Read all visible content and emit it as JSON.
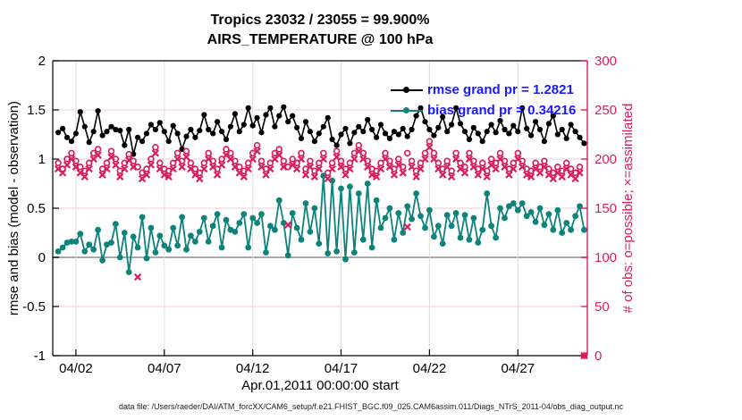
{
  "header": {
    "line1": "Tropics 23032 / 23055 = 99.900%",
    "line2": "AIRS_TEMPERATURE @ 100 hPa"
  },
  "axes": {
    "left_label": "rmse and bias (model - observation)",
    "right_label": "# of obs: o=possible; ×=assimilated",
    "x_label": "Apr.01,2011 00:00:00 start"
  },
  "legend": {
    "rmse": "rmse grand pr = 1.2821",
    "bias": "bias grand pr = 0.34216"
  },
  "footer": {
    "text": "data file: /Users/raeder/DAI/ATM_forcXX/CAM6_setup/f.e21.FHIST_BGC.f09_025.CAM6assim.011/Diags_NTrS_2011-04/obs_diag_output.nc"
  },
  "chart_data": {
    "type": "line",
    "title": "Tropics 23032 / 23055 = 99.900% | AIRS_TEMPERATURE @ 100 hPa",
    "xlabel": "Apr.01,2011 00:00:00 start",
    "ylabel_left": "rmse and bias (model - observation)",
    "ylabel_right": "# of obs: o=possible; ×=assimilated",
    "xlim": [
      -0.31,
      29.93
    ],
    "ylim_left": [
      -1,
      2
    ],
    "ylim_right": [
      0,
      300
    ],
    "grid": true,
    "legend_position": "top-right-inside",
    "x": {
      "start_day": 0.0,
      "step_day": 0.25,
      "count": 120
    },
    "xticks": {
      "positions": [
        1,
        6,
        11,
        16,
        21,
        26
      ],
      "labels": [
        "04/02",
        "04/07",
        "04/12",
        "04/17",
        "04/22",
        "04/27"
      ]
    },
    "yticks_left": {
      "positions": [
        -1,
        -0.5,
        0,
        0.5,
        1,
        1.5,
        2
      ],
      "labels": [
        "-1",
        "-0.5",
        "0",
        "0.5",
        "1",
        "1.5",
        "2"
      ]
    },
    "yticks_right": {
      "positions": [
        0,
        50,
        100,
        150,
        200,
        250,
        300
      ],
      "labels": [
        "0",
        "50",
        "100",
        "150",
        "200",
        "250",
        "300"
      ]
    },
    "style": {
      "rmse_color": "#000000",
      "bias_color": "#0e837b",
      "obs_color": "#d81e5b",
      "legend_text_color": "#1a1aff",
      "grid_h_color": "#f3cdd9",
      "grid_v_color": "#e2dbdb",
      "zero_line_color": "#a9a9a9",
      "axis_color": "#000000",
      "right_axis_color": "#d81e5b"
    },
    "series": [
      {
        "name": "rmse grand pr = 1.2821",
        "axis": "left",
        "marker": "dot",
        "line": true,
        "values": [
          1.27,
          1.31,
          1.22,
          1.18,
          1.26,
          1.48,
          1.33,
          1.17,
          1.28,
          1.49,
          1.24,
          1.28,
          1.33,
          1.3,
          1.29,
          1.14,
          1.3,
          1.05,
          1.22,
          1.18,
          1.26,
          1.35,
          1.3,
          1.37,
          1.28,
          1.18,
          1.34,
          1.26,
          1.1,
          1.23,
          1.3,
          1.22,
          1.29,
          1.45,
          1.3,
          1.26,
          1.38,
          1.28,
          1.2,
          1.33,
          1.46,
          1.28,
          1.35,
          1.52,
          1.34,
          1.42,
          1.27,
          1.45,
          1.52,
          1.33,
          1.44,
          1.53,
          1.38,
          1.44,
          1.32,
          1.21,
          1.38,
          1.28,
          1.18,
          1.26,
          1.33,
          1.42,
          1.2,
          1.14,
          1.25,
          1.31,
          1.16,
          1.27,
          1.33,
          1.28,
          1.4,
          1.3,
          1.22,
          1.35,
          1.26,
          1.21,
          1.28,
          1.25,
          1.31,
          1.23,
          1.3,
          1.44,
          1.52,
          1.38,
          1.3,
          1.24,
          1.32,
          1.43,
          1.28,
          1.35,
          1.52,
          1.36,
          1.28,
          1.2,
          1.32,
          1.26,
          1.18,
          1.28,
          1.35,
          1.27,
          1.39,
          1.3,
          1.26,
          1.34,
          1.28,
          1.52,
          1.31,
          1.24,
          1.38,
          1.3,
          1.18,
          1.36,
          1.44,
          1.25,
          1.3,
          1.21,
          1.35,
          1.28,
          1.22,
          1.16
        ]
      },
      {
        "name": "bias grand pr = 0.34216",
        "axis": "left",
        "marker": "dot",
        "line": true,
        "values": [
          0.06,
          0.1,
          0.15,
          0.16,
          0.16,
          0.24,
          0.06,
          0.13,
          0.08,
          0.28,
          -0.03,
          0.13,
          0.15,
          0.34,
          0.0,
          0.25,
          -0.15,
          0.21,
          0.1,
          0.41,
          -0.01,
          0.3,
          0.05,
          0.22,
          0.12,
          0.08,
          0.3,
          0.12,
          0.41,
          0.08,
          0.22,
          0.16,
          0.26,
          0.4,
          0.16,
          0.32,
          0.44,
          0.1,
          0.38,
          0.28,
          0.26,
          0.35,
          0.44,
          0.1,
          0.4,
          0.35,
          0.44,
          0.05,
          0.32,
          0.28,
          0.58,
          0.35,
          0.02,
          0.45,
          0.3,
          0.18,
          0.55,
          0.26,
          0.5,
          0.14,
          0.83,
          0.04,
          0.78,
          0.06,
          0.7,
          -0.02,
          0.72,
          0.05,
          0.65,
          0.18,
          0.75,
          0.1,
          0.58,
          0.3,
          0.4,
          0.5,
          0.18,
          0.45,
          0.25,
          0.52,
          0.39,
          0.65,
          0.42,
          0.3,
          0.48,
          0.21,
          0.32,
          0.14,
          0.43,
          0.32,
          0.45,
          0.2,
          0.43,
          0.18,
          0.4,
          0.15,
          0.28,
          0.65,
          0.32,
          0.2,
          0.5,
          0.4,
          0.52,
          0.55,
          0.48,
          0.55,
          0.42,
          0.46,
          0.36,
          0.5,
          0.33,
          0.44,
          0.28,
          0.48,
          0.25,
          0.35,
          0.28,
          0.42,
          0.52,
          0.28
        ]
      },
      {
        "name": "possible",
        "axis": "right",
        "marker": "o",
        "line": false,
        "values": [
          196,
          190,
          200,
          206,
          198,
          192,
          188,
          196,
          206,
          210,
          190,
          196,
          208,
          200,
          188,
          196,
          205,
          198,
          192,
          186,
          190,
          200,
          212,
          196,
          190,
          188,
          196,
          206,
          198,
          208,
          196,
          190,
          186,
          196,
          206,
          198,
          190,
          200,
          210,
          206,
          198,
          192,
          188,
          196,
          206,
          214,
          198,
          190,
          196,
          206,
          210,
          198,
          192,
          200,
          196,
          206,
          190,
          198,
          188,
          196,
          206,
          186,
          196,
          208,
          198,
          190,
          196,
          206,
          214,
          206,
          198,
          190,
          188,
          196,
          206,
          198,
          190,
          200,
          192,
          206,
          198,
          188,
          196,
          206,
          218,
          206,
          196,
          190,
          198,
          188,
          206,
          196,
          192,
          206,
          198,
          190,
          196,
          188,
          200,
          196,
          206,
          198,
          190,
          196,
          206,
          198,
          190,
          188,
          196,
          192,
          198,
          190,
          186,
          192,
          188,
          196,
          190,
          186,
          192,
          0
        ]
      },
      {
        "name": "assimilated",
        "axis": "right",
        "marker": "x",
        "line": false,
        "values": [
          190,
          186,
          194,
          200,
          192,
          186,
          182,
          190,
          200,
          204,
          184,
          190,
          202,
          194,
          182,
          190,
          199,
          192,
          80,
          180,
          184,
          194,
          206,
          190,
          184,
          182,
          190,
          200,
          192,
          202,
          190,
          184,
          180,
          190,
          200,
          192,
          184,
          194,
          204,
          200,
          192,
          186,
          182,
          190,
          200,
          208,
          192,
          184,
          190,
          200,
          204,
          192,
          133,
          194,
          190,
          200,
          184,
          192,
          182,
          190,
          200,
          180,
          190,
          202,
          192,
          184,
          190,
          200,
          208,
          200,
          192,
          184,
          182,
          190,
          200,
          192,
          184,
          194,
          186,
          131,
          192,
          182,
          190,
          200,
          212,
          200,
          190,
          184,
          192,
          182,
          200,
          190,
          186,
          200,
          192,
          184,
          190,
          182,
          194,
          190,
          200,
          192,
          184,
          190,
          200,
          192,
          184,
          182,
          190,
          186,
          192,
          184,
          180,
          186,
          182,
          190,
          184,
          180,
          186,
          0
        ]
      }
    ]
  }
}
